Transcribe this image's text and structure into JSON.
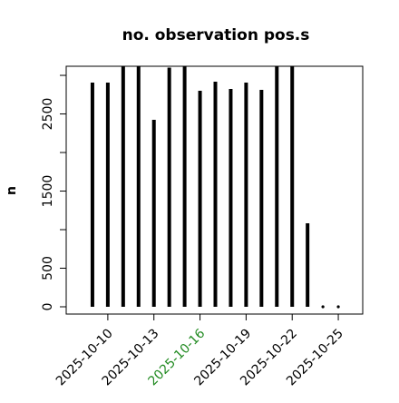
{
  "chart_data": {
    "type": "lollipop-h",
    "title": "no. observation pos.s",
    "ylabel": "n",
    "x": [
      "2025-10-09",
      "2025-10-10",
      "2025-10-11",
      "2025-10-12",
      "2025-10-13",
      "2025-10-14",
      "2025-10-15",
      "2025-10-16",
      "2025-10-17",
      "2025-10-18",
      "2025-10-19",
      "2025-10-20",
      "2025-10-21",
      "2025-10-22",
      "2025-10-23",
      "2025-10-24",
      "2025-10-25"
    ],
    "values": [
      2906,
      2906,
      3200,
      3200,
      2424,
      3100,
      3200,
      2800,
      2918,
      2824,
      2906,
      2812,
      3200,
      3200,
      1082,
      0,
      0
    ],
    "color": "#000000",
    "xlim": [
      "2025-10-08",
      "2025-10-26"
    ],
    "xticks": [
      "2025-10-10",
      "2025-10-13",
      "2025-10-16",
      "2025-10-19",
      "2025-10-22",
      "2025-10-25"
    ],
    "xtick_label_colors": [
      "#000000",
      "#000000",
      "#228b22",
      "#000000",
      "#000000",
      "#000000"
    ],
    "ylim": [
      -94,
      3118
    ],
    "yticks": [
      0,
      500,
      1500,
      2500
    ],
    "minor_yticks": [
      1000,
      2000,
      3000
    ]
  }
}
